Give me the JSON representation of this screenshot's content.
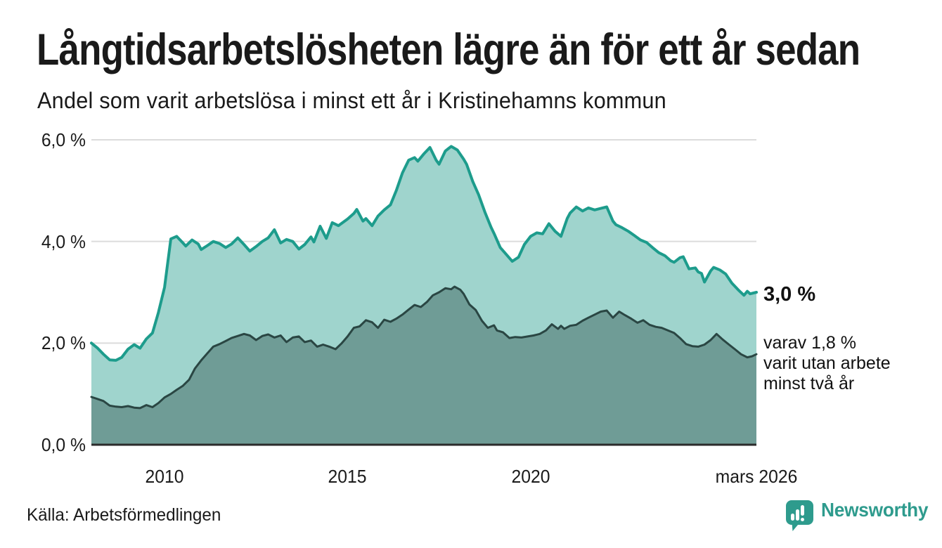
{
  "header": {
    "title": "Långtidsarbetslösheten lägre än för ett år sedan",
    "subtitle": "Andel som varit arbetslösa i minst ett år i Kristinehamns kommun"
  },
  "footer": {
    "source": "Källa: Arbetsförmedlingen",
    "brand": "Newsworthy"
  },
  "colors": {
    "series1_line": "#1d9c8c",
    "series1_fill": "#9fd4cd",
    "series2_line": "#2a4643",
    "series2_fill": "#6f9c96",
    "gridline": "#dcdcdc",
    "baseline": "#2b2b2b",
    "brand_teal": "#2e9b8d"
  },
  "chart_data": {
    "type": "area",
    "title": "Långtidsarbetslösheten lägre än för ett år sedan",
    "subtitle": "Andel som varit arbetslösa i minst ett år i Kristinehamns kommun",
    "unit": "%",
    "grid": "horizontal-only",
    "x_axis": {
      "start": 2008.0,
      "end": 2026.17,
      "ticks": [
        {
          "label": "2010",
          "t": 2010
        },
        {
          "label": "2015",
          "t": 2015
        },
        {
          "label": "2020",
          "t": 2020
        },
        {
          "label": "mars 2026",
          "t": 2026.17
        }
      ]
    },
    "y_axis": {
      "min": 0,
      "max": 6,
      "ticks": [
        {
          "label": "0,0 %",
          "v": 0
        },
        {
          "label": "2,0 %",
          "v": 2
        },
        {
          "label": "4,0 %",
          "v": 4
        },
        {
          "label": "6,0 %",
          "v": 6
        }
      ]
    },
    "annotations": {
      "end_value_main": "3,0 %",
      "end_note_lines": [
        "varav 1,8 %",
        "varit utan arbete",
        "minst två år"
      ]
    },
    "series": [
      {
        "name": "Andel arbetslösa minst ett år",
        "end_value": 3.0,
        "line_color": "#1d9c8c",
        "fill_color": "#9fd4cd",
        "line_width": 4,
        "points": [
          [
            2008.0,
            2.0
          ],
          [
            2008.17,
            1.9
          ],
          [
            2008.33,
            1.78
          ],
          [
            2008.5,
            1.67
          ],
          [
            2008.67,
            1.66
          ],
          [
            2008.83,
            1.72
          ],
          [
            2009.0,
            1.88
          ],
          [
            2009.17,
            1.97
          ],
          [
            2009.33,
            1.9
          ],
          [
            2009.5,
            2.08
          ],
          [
            2009.67,
            2.2
          ],
          [
            2009.83,
            2.6
          ],
          [
            2010.0,
            3.1
          ],
          [
            2010.08,
            3.55
          ],
          [
            2010.17,
            4.05
          ],
          [
            2010.33,
            4.1
          ],
          [
            2010.5,
            3.97
          ],
          [
            2010.58,
            3.91
          ],
          [
            2010.75,
            4.03
          ],
          [
            2010.92,
            3.95
          ],
          [
            2011.0,
            3.84
          ],
          [
            2011.17,
            3.92
          ],
          [
            2011.33,
            4.0
          ],
          [
            2011.5,
            3.96
          ],
          [
            2011.67,
            3.88
          ],
          [
            2011.83,
            3.95
          ],
          [
            2012.0,
            4.07
          ],
          [
            2012.17,
            3.94
          ],
          [
            2012.33,
            3.81
          ],
          [
            2012.5,
            3.9
          ],
          [
            2012.67,
            4.0
          ],
          [
            2012.83,
            4.07
          ],
          [
            2013.0,
            4.23
          ],
          [
            2013.17,
            3.97
          ],
          [
            2013.33,
            4.04
          ],
          [
            2013.5,
            4.0
          ],
          [
            2013.67,
            3.85
          ],
          [
            2013.83,
            3.94
          ],
          [
            2014.0,
            4.09
          ],
          [
            2014.08,
            3.99
          ],
          [
            2014.25,
            4.3
          ],
          [
            2014.42,
            4.06
          ],
          [
            2014.58,
            4.37
          ],
          [
            2014.75,
            4.31
          ],
          [
            2015.0,
            4.44
          ],
          [
            2015.17,
            4.55
          ],
          [
            2015.25,
            4.63
          ],
          [
            2015.42,
            4.4
          ],
          [
            2015.5,
            4.45
          ],
          [
            2015.67,
            4.31
          ],
          [
            2015.83,
            4.5
          ],
          [
            2016.0,
            4.62
          ],
          [
            2016.17,
            4.72
          ],
          [
            2016.33,
            5.0
          ],
          [
            2016.5,
            5.35
          ],
          [
            2016.67,
            5.6
          ],
          [
            2016.83,
            5.65
          ],
          [
            2016.92,
            5.58
          ],
          [
            2017.08,
            5.72
          ],
          [
            2017.25,
            5.85
          ],
          [
            2017.42,
            5.6
          ],
          [
            2017.5,
            5.52
          ],
          [
            2017.67,
            5.78
          ],
          [
            2017.83,
            5.87
          ],
          [
            2018.0,
            5.8
          ],
          [
            2018.17,
            5.62
          ],
          [
            2018.25,
            5.52
          ],
          [
            2018.42,
            5.18
          ],
          [
            2018.58,
            4.92
          ],
          [
            2018.75,
            4.58
          ],
          [
            2018.92,
            4.28
          ],
          [
            2019.0,
            4.16
          ],
          [
            2019.17,
            3.88
          ],
          [
            2019.33,
            3.75
          ],
          [
            2019.5,
            3.61
          ],
          [
            2019.67,
            3.69
          ],
          [
            2019.83,
            3.94
          ],
          [
            2020.0,
            4.1
          ],
          [
            2020.17,
            4.17
          ],
          [
            2020.33,
            4.15
          ],
          [
            2020.5,
            4.35
          ],
          [
            2020.67,
            4.2
          ],
          [
            2020.83,
            4.1
          ],
          [
            2021.0,
            4.45
          ],
          [
            2021.08,
            4.56
          ],
          [
            2021.25,
            4.68
          ],
          [
            2021.42,
            4.6
          ],
          [
            2021.58,
            4.66
          ],
          [
            2021.75,
            4.62
          ],
          [
            2021.92,
            4.65
          ],
          [
            2022.08,
            4.68
          ],
          [
            2022.25,
            4.4
          ],
          [
            2022.33,
            4.33
          ],
          [
            2022.5,
            4.27
          ],
          [
            2022.67,
            4.2
          ],
          [
            2022.83,
            4.12
          ],
          [
            2023.0,
            4.03
          ],
          [
            2023.17,
            3.98
          ],
          [
            2023.33,
            3.88
          ],
          [
            2023.5,
            3.78
          ],
          [
            2023.67,
            3.72
          ],
          [
            2023.83,
            3.62
          ],
          [
            2023.92,
            3.59
          ],
          [
            2024.08,
            3.68
          ],
          [
            2024.17,
            3.7
          ],
          [
            2024.33,
            3.46
          ],
          [
            2024.5,
            3.48
          ],
          [
            2024.58,
            3.4
          ],
          [
            2024.67,
            3.37
          ],
          [
            2024.75,
            3.2
          ],
          [
            2024.92,
            3.42
          ],
          [
            2025.0,
            3.49
          ],
          [
            2025.17,
            3.44
          ],
          [
            2025.33,
            3.36
          ],
          [
            2025.5,
            3.18
          ],
          [
            2025.67,
            3.05
          ],
          [
            2025.83,
            2.94
          ],
          [
            2025.92,
            3.02
          ],
          [
            2026.0,
            2.97
          ],
          [
            2026.17,
            3.0
          ]
        ]
      },
      {
        "name": "varav utan arbete minst två år",
        "end_value": 1.8,
        "line_color": "#2a4643",
        "fill_color": "#6f9c96",
        "line_width": 3,
        "points": [
          [
            2008.0,
            0.94
          ],
          [
            2008.17,
            0.9
          ],
          [
            2008.33,
            0.86
          ],
          [
            2008.5,
            0.77
          ],
          [
            2008.67,
            0.75
          ],
          [
            2008.83,
            0.74
          ],
          [
            2009.0,
            0.76
          ],
          [
            2009.17,
            0.73
          ],
          [
            2009.33,
            0.72
          ],
          [
            2009.5,
            0.78
          ],
          [
            2009.67,
            0.74
          ],
          [
            2009.83,
            0.82
          ],
          [
            2010.0,
            0.93
          ],
          [
            2010.17,
            1.0
          ],
          [
            2010.33,
            1.08
          ],
          [
            2010.5,
            1.16
          ],
          [
            2010.67,
            1.28
          ],
          [
            2010.83,
            1.5
          ],
          [
            2011.0,
            1.66
          ],
          [
            2011.17,
            1.8
          ],
          [
            2011.33,
            1.93
          ],
          [
            2011.5,
            1.98
          ],
          [
            2011.67,
            2.04
          ],
          [
            2011.83,
            2.1
          ],
          [
            2012.0,
            2.14
          ],
          [
            2012.17,
            2.18
          ],
          [
            2012.33,
            2.15
          ],
          [
            2012.5,
            2.06
          ],
          [
            2012.67,
            2.14
          ],
          [
            2012.83,
            2.17
          ],
          [
            2013.0,
            2.11
          ],
          [
            2013.17,
            2.15
          ],
          [
            2013.33,
            2.02
          ],
          [
            2013.5,
            2.11
          ],
          [
            2013.67,
            2.13
          ],
          [
            2013.83,
            2.02
          ],
          [
            2014.0,
            2.05
          ],
          [
            2014.17,
            1.93
          ],
          [
            2014.33,
            1.97
          ],
          [
            2014.5,
            1.93
          ],
          [
            2014.67,
            1.88
          ],
          [
            2014.83,
            1.99
          ],
          [
            2015.0,
            2.13
          ],
          [
            2015.17,
            2.3
          ],
          [
            2015.33,
            2.33
          ],
          [
            2015.5,
            2.45
          ],
          [
            2015.67,
            2.41
          ],
          [
            2015.83,
            2.3
          ],
          [
            2016.0,
            2.46
          ],
          [
            2016.17,
            2.42
          ],
          [
            2016.33,
            2.48
          ],
          [
            2016.5,
            2.56
          ],
          [
            2016.67,
            2.66
          ],
          [
            2016.83,
            2.75
          ],
          [
            2017.0,
            2.71
          ],
          [
            2017.17,
            2.81
          ],
          [
            2017.33,
            2.94
          ],
          [
            2017.5,
            3.0
          ],
          [
            2017.67,
            3.08
          ],
          [
            2017.83,
            3.06
          ],
          [
            2017.92,
            3.11
          ],
          [
            2018.08,
            3.05
          ],
          [
            2018.17,
            2.97
          ],
          [
            2018.33,
            2.76
          ],
          [
            2018.5,
            2.65
          ],
          [
            2018.67,
            2.44
          ],
          [
            2018.83,
            2.3
          ],
          [
            2019.0,
            2.35
          ],
          [
            2019.08,
            2.25
          ],
          [
            2019.25,
            2.21
          ],
          [
            2019.42,
            2.1
          ],
          [
            2019.58,
            2.12
          ],
          [
            2019.75,
            2.11
          ],
          [
            2019.92,
            2.13
          ],
          [
            2020.08,
            2.15
          ],
          [
            2020.25,
            2.18
          ],
          [
            2020.42,
            2.25
          ],
          [
            2020.58,
            2.37
          ],
          [
            2020.75,
            2.28
          ],
          [
            2020.83,
            2.34
          ],
          [
            2020.92,
            2.28
          ],
          [
            2021.08,
            2.34
          ],
          [
            2021.25,
            2.36
          ],
          [
            2021.42,
            2.44
          ],
          [
            2021.58,
            2.5
          ],
          [
            2021.75,
            2.56
          ],
          [
            2021.92,
            2.62
          ],
          [
            2022.08,
            2.64
          ],
          [
            2022.25,
            2.5
          ],
          [
            2022.42,
            2.62
          ],
          [
            2022.58,
            2.55
          ],
          [
            2022.75,
            2.48
          ],
          [
            2022.92,
            2.4
          ],
          [
            2023.08,
            2.45
          ],
          [
            2023.25,
            2.36
          ],
          [
            2023.42,
            2.32
          ],
          [
            2023.58,
            2.3
          ],
          [
            2023.75,
            2.25
          ],
          [
            2023.92,
            2.2
          ],
          [
            2024.08,
            2.1
          ],
          [
            2024.25,
            1.98
          ],
          [
            2024.42,
            1.94
          ],
          [
            2024.58,
            1.93
          ],
          [
            2024.75,
            1.97
          ],
          [
            2024.92,
            2.06
          ],
          [
            2025.08,
            2.18
          ],
          [
            2025.25,
            2.07
          ],
          [
            2025.42,
            1.97
          ],
          [
            2025.58,
            1.88
          ],
          [
            2025.75,
            1.78
          ],
          [
            2025.92,
            1.72
          ],
          [
            2026.05,
            1.74
          ],
          [
            2026.17,
            1.78
          ]
        ]
      }
    ]
  }
}
